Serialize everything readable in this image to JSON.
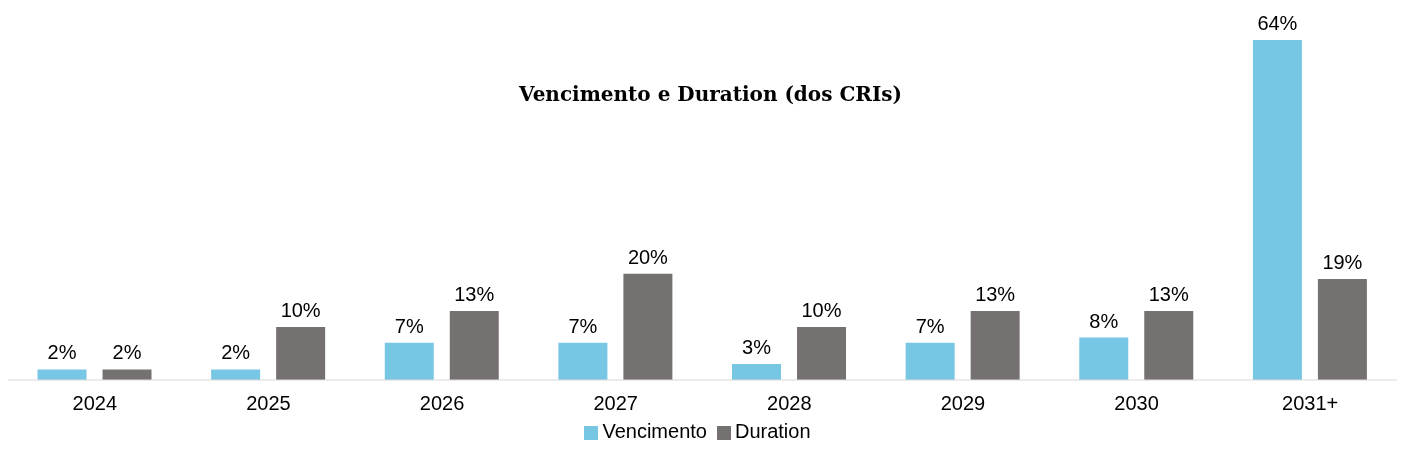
{
  "chart_data": {
    "type": "bar",
    "title": "Vencimento e Duration (dos CRIs)",
    "categories": [
      "2024",
      "2025",
      "2026",
      "2027",
      "2028",
      "2029",
      "2030",
      "2031+"
    ],
    "series": [
      {
        "name": "Vencimento",
        "color": "#76c6e4",
        "values": [
          2,
          2,
          7,
          7,
          3,
          7,
          8,
          64
        ],
        "value_labels": [
          "2%",
          "2%",
          "7%",
          "7%",
          "3%",
          "7%",
          "8%",
          "64%"
        ]
      },
      {
        "name": "Duration",
        "color": "#767171",
        "values": [
          2,
          10,
          13,
          20,
          10,
          13,
          13,
          19
        ],
        "value_labels": [
          "2%",
          "10%",
          "13%",
          "20%",
          "10%",
          "13%",
          "13%",
          "19%"
        ]
      }
    ],
    "legend": "bottom",
    "grid": false
  }
}
